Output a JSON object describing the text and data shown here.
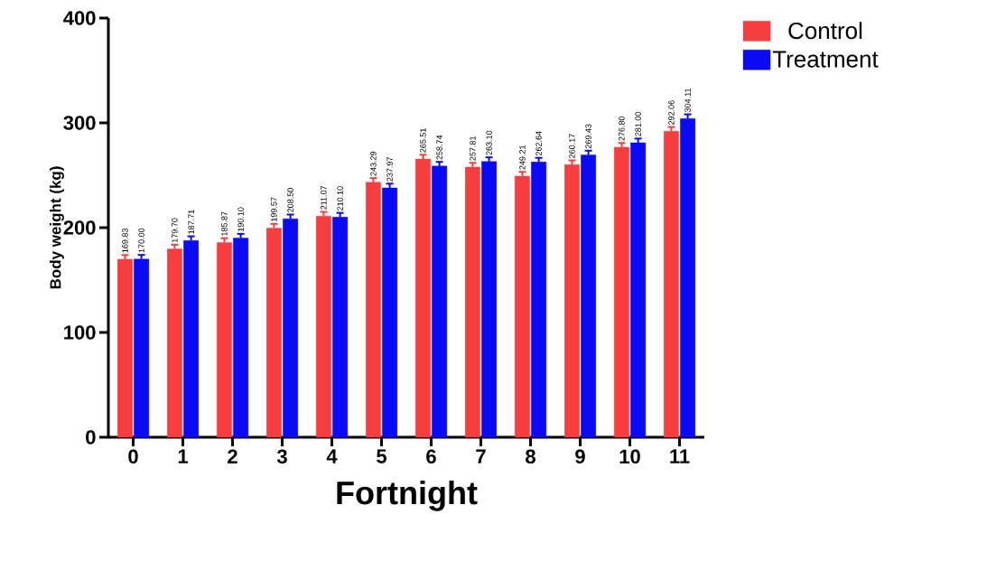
{
  "chart_data": {
    "type": "bar",
    "xlabel": "Fortnight",
    "ylabel": "Body weight (kg)",
    "categories": [
      "0",
      "1",
      "2",
      "3",
      "4",
      "5",
      "6",
      "7",
      "8",
      "9",
      "10",
      "11"
    ],
    "series": [
      {
        "name": "Control",
        "color": "#f73e3e",
        "values": [
          169.83,
          179.7,
          185.87,
          199.57,
          211.07,
          243.29,
          265.51,
          257.81,
          249.21,
          260.17,
          276.8,
          292.06
        ],
        "errors": [
          4,
          4,
          4,
          4,
          4,
          4,
          4,
          4,
          4,
          4,
          4,
          4
        ],
        "value_labels": [
          "169.83",
          "179.70",
          "185.87",
          "199.57",
          "211.07",
          "243.29",
          "265.51",
          "257.81",
          "249.21",
          "260.17",
          "276.80",
          "292.06"
        ]
      },
      {
        "name": "Treatment",
        "color": "#0a0af5",
        "values": [
          170.0,
          187.71,
          190.1,
          208.5,
          210.1,
          237.97,
          258.74,
          263.1,
          262.64,
          269.43,
          281.0,
          304.11
        ],
        "errors": [
          4,
          4,
          4,
          4,
          4,
          4,
          4,
          4,
          4,
          4,
          4,
          4
        ],
        "value_labels": [
          "170.00",
          "187.71",
          "190.10",
          "208.50",
          "210.10",
          "237.97",
          "258.74",
          "263.10",
          "262.64",
          "269.43",
          "281.00",
          "304.11"
        ]
      }
    ],
    "ylim": [
      0,
      400
    ],
    "yticks": [
      0,
      100,
      200,
      300,
      400
    ],
    "grid": false,
    "legend": "top right"
  }
}
